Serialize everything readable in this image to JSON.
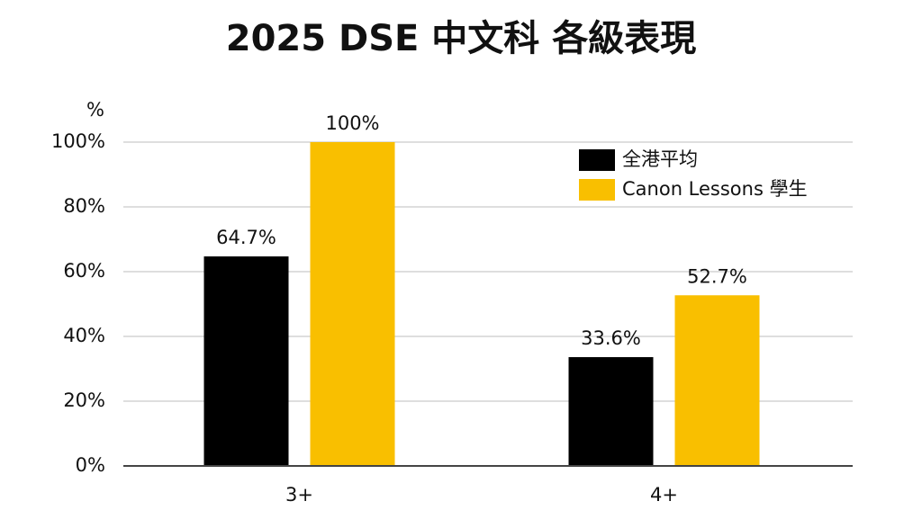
{
  "chart_data": {
    "type": "bar",
    "title": "2025 DSE 中文科 各級表現",
    "y_label": "%",
    "categories": [
      "3+",
      "4+"
    ],
    "series": [
      {
        "name": "全港平均",
        "color": "#000000",
        "values": [
          64.7,
          33.6
        ],
        "value_labels": [
          "64.7%",
          "33.6%"
        ]
      },
      {
        "name": "Canon Lessons 學生",
        "color": "#f9bf00",
        "values": [
          100,
          52.7
        ],
        "value_labels": [
          "100%",
          "52.7%"
        ]
      }
    ],
    "ylim": [
      0,
      100
    ],
    "yticks": [
      {
        "value": 0,
        "label": "0%"
      },
      {
        "value": 20,
        "label": "20%"
      },
      {
        "value": 40,
        "label": "40%"
      },
      {
        "value": 60,
        "label": "60%"
      },
      {
        "value": 80,
        "label": "80%"
      },
      {
        "value": 100,
        "label": "100%"
      }
    ],
    "grid": true,
    "legend": "upper right"
  }
}
